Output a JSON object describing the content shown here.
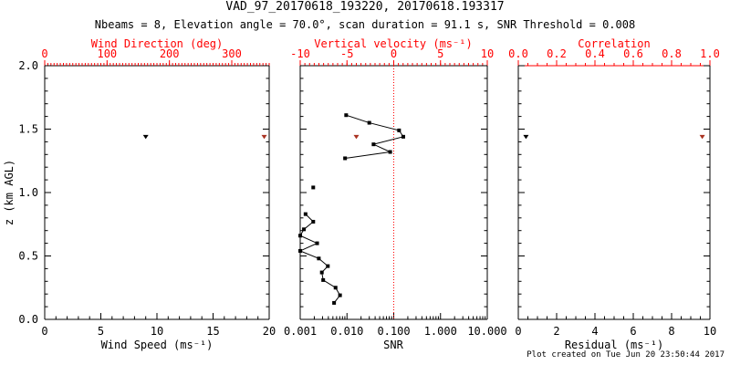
{
  "title": "VAD_97_20170618_193220, 20170618.193317",
  "subtitle": "Nbeams = 8, Elevation angle = 70.0°, scan duration = 91.1 s, SNR Threshold = 0.008",
  "footer": "Plot created on Tue Jun 20 23:50:44 2017",
  "colors": {
    "axis": "#000000",
    "annotation_red": "#ff0000",
    "marker_red": "#aa3322",
    "background": "#ffffff"
  },
  "y_axis": {
    "label": "z (km AGL)",
    "range": [
      0,
      2
    ],
    "ticks": [
      0,
      0.5,
      1,
      1.5,
      2
    ],
    "tick_labels": [
      "0.0",
      "0.5",
      "1.0",
      "1.5",
      "2.0"
    ],
    "minor": 0.1
  },
  "chart_data": [
    {
      "type": "scatter",
      "name": "wind",
      "bottom_axis": {
        "label": "Wind Speed (ms⁻¹)",
        "range": [
          0,
          20
        ],
        "ticks": [
          0,
          5,
          10,
          15,
          20
        ],
        "tick_labels": [
          "0",
          "5",
          "10",
          "15",
          "20"
        ],
        "minor": 1
      },
      "top_axis": {
        "label": "Wind Direction (deg)",
        "range": [
          0,
          360
        ],
        "ticks": [
          0,
          100,
          200,
          300
        ],
        "tick_labels": [
          "0",
          "100",
          "200",
          "300"
        ],
        "minor": 5
      },
      "series": [
        {
          "name": "wind-speed-point",
          "quantity": "wind_speed",
          "axis": "bottom",
          "color": "#000000",
          "marker": "triangle",
          "connect": false,
          "points": [
            {
              "x": 9.0,
              "z": 1.44
            }
          ]
        },
        {
          "name": "wind-direction-point",
          "quantity": "wind_direction",
          "axis": "top",
          "color": "#aa3322",
          "marker": "triangle",
          "connect": false,
          "points": [
            {
              "x": 352,
              "z": 1.44
            }
          ]
        }
      ]
    },
    {
      "type": "line",
      "name": "snr",
      "bottom_axis": {
        "label": "SNR",
        "scale": "log",
        "range": [
          0.001,
          10
        ],
        "ticks": [
          0.001,
          0.01,
          0.1,
          1,
          10
        ],
        "tick_labels": [
          "0.001",
          "0.010",
          "0.100",
          "1.000",
          "10.000"
        ]
      },
      "top_axis": {
        "label": "Vertical velocity (ms⁻¹)",
        "range": [
          -10,
          10
        ],
        "ticks": [
          -10,
          -5,
          0,
          5,
          10
        ],
        "tick_labels": [
          "-10",
          "-5",
          "0",
          "5",
          "10"
        ],
        "minor": 0.5
      },
      "reference_line": {
        "axis": "top",
        "value": 0,
        "color": "#ff0000",
        "style": "dotted"
      },
      "series": [
        {
          "name": "snr-profile-upper",
          "quantity": "snr",
          "axis": "bottom",
          "color": "#000000",
          "marker": "square",
          "connect": true,
          "points": [
            {
              "x": 0.0096,
              "z": 1.61
            },
            {
              "x": 0.03,
              "z": 1.55
            },
            {
              "x": 0.13,
              "z": 1.49
            },
            {
              "x": 0.16,
              "z": 1.44
            },
            {
              "x": 0.037,
              "z": 1.38
            },
            {
              "x": 0.084,
              "z": 1.32
            },
            {
              "x": 0.0091,
              "z": 1.27
            }
          ]
        },
        {
          "name": "snr-isolated-point",
          "quantity": "snr",
          "axis": "bottom",
          "color": "#000000",
          "marker": "square",
          "connect": false,
          "points": [
            {
              "x": 0.0019,
              "z": 1.04
            }
          ]
        },
        {
          "name": "snr-profile-lower",
          "quantity": "snr",
          "axis": "bottom",
          "color": "#000000",
          "marker": "square",
          "connect": true,
          "points": [
            {
              "x": 0.0013,
              "z": 0.83
            },
            {
              "x": 0.0019,
              "z": 0.77
            },
            {
              "x": 0.0012,
              "z": 0.71
            },
            {
              "x": 0.001,
              "z": 0.66
            },
            {
              "x": 0.0023,
              "z": 0.6
            },
            {
              "x": 0.001,
              "z": 0.54
            },
            {
              "x": 0.0025,
              "z": 0.48
            },
            {
              "x": 0.0039,
              "z": 0.42
            },
            {
              "x": 0.0029,
              "z": 0.37
            },
            {
              "x": 0.0031,
              "z": 0.31
            },
            {
              "x": 0.0057,
              "z": 0.25
            },
            {
              "x": 0.0071,
              "z": 0.19
            },
            {
              "x": 0.0053,
              "z": 0.13
            }
          ]
        },
        {
          "name": "vertical-velocity-point",
          "quantity": "vertical_velocity",
          "axis": "top",
          "color": "#aa3322",
          "marker": "triangle",
          "connect": false,
          "points": [
            {
              "x": -4.0,
              "z": 1.44
            }
          ]
        }
      ]
    },
    {
      "type": "scatter",
      "name": "residual",
      "bottom_axis": {
        "label": "Residual (ms⁻¹)",
        "range": [
          0,
          10
        ],
        "ticks": [
          0,
          2,
          4,
          6,
          8,
          10
        ],
        "tick_labels": [
          "0",
          "2",
          "4",
          "6",
          "8",
          "10"
        ],
        "minor": 0.5
      },
      "top_axis": {
        "label": "Correlation",
        "range": [
          0,
          1
        ],
        "ticks": [
          0,
          0.2,
          0.4,
          0.6,
          0.8,
          1
        ],
        "tick_labels": [
          "0.0",
          "0.2",
          "0.4",
          "0.6",
          "0.8",
          "1.0"
        ],
        "minor": 0.05,
        "line_color": "#ff0000"
      },
      "series": [
        {
          "name": "residual-point",
          "quantity": "residual",
          "axis": "bottom",
          "color": "#000000",
          "marker": "triangle",
          "connect": false,
          "points": [
            {
              "x": 0.4,
              "z": 1.44
            }
          ]
        },
        {
          "name": "correlation-point",
          "quantity": "correlation",
          "axis": "top",
          "color": "#aa3322",
          "marker": "triangle",
          "connect": false,
          "points": [
            {
              "x": 0.96,
              "z": 1.44
            }
          ]
        }
      ]
    }
  ]
}
